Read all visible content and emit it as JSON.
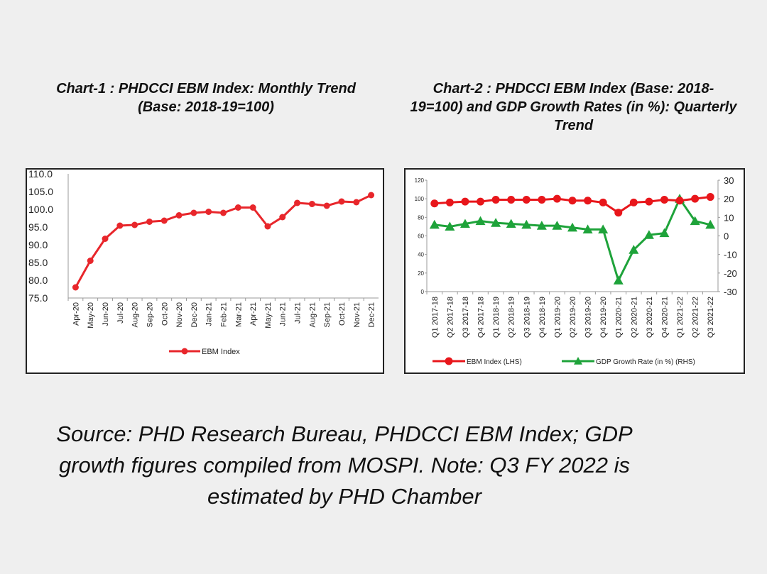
{
  "chart1_title": {
    "line1": "Chart-1 : PHDCCI EBM Index: Monthly Trend",
    "line2": "(Base: 2018-19=100)"
  },
  "chart2_title": {
    "line1": "Chart-2 : PHDCCI EBM Index (Base: 2018-",
    "line2": "19=100) and GDP Growth Rates (in %): Quarterly",
    "line3": "Trend"
  },
  "source_note": {
    "line1": "Source: PHD Research Bureau, PHDCCI EBM Index; GDP",
    "line2": "growth figures compiled from MOSPI. Note: Q3 FY 2022 is",
    "line3": "estimated by PHD Chamber"
  },
  "chart_data": [
    {
      "type": "line",
      "title": "Chart-1 : PHDCCI EBM Index: Monthly Trend (Base: 2018-19=100)",
      "categories": [
        "Apr-20",
        "May-20",
        "Jun-20",
        "Jul-20",
        "Aug-20",
        "Sep-20",
        "Oct-20",
        "Nov-20",
        "Dec-20",
        "Jan-21",
        "Feb-21",
        "Mar-21",
        "Apr-21",
        "May-21",
        "Jun-21",
        "Jul-21",
        "Aug-21",
        "Sep-21",
        "Oct-21",
        "Nov-21",
        "Dec-21"
      ],
      "series": [
        {
          "name": "EBM Index",
          "color": "#e8262b",
          "values": [
            78.0,
            85.5,
            91.7,
            95.4,
            95.6,
            96.5,
            96.8,
            98.3,
            99.0,
            99.3,
            99.0,
            100.5,
            100.5,
            95.2,
            97.8,
            101.8,
            101.5,
            101.0,
            102.2,
            102.0,
            104.0
          ]
        }
      ],
      "ylim": [
        75.0,
        110.0
      ],
      "yticks": [
        "75.0",
        "80.0",
        "85.0",
        "90.0",
        "95.0",
        "100.0",
        "105.0",
        "110.0"
      ],
      "legend": "bottom"
    },
    {
      "type": "line",
      "title": "Chart-2 : PHDCCI EBM Index (Base: 2018-19=100) and GDP Growth Rates (in %): Quarterly Trend",
      "categories": [
        "Q1 2017-18",
        "Q2 2017-18",
        "Q3 2017-18",
        "Q4 2017-18",
        "Q1 2018-19",
        "Q2 2018-19",
        "Q3 2018-19",
        "Q4 2018-19",
        "Q1 2019-20",
        "Q2 2019-20",
        "Q3 2019-20",
        "Q4 2019-20",
        "Q1 2020-21",
        "Q2 2020-21",
        "Q3 2020-21",
        "Q4 2020-21",
        "Q1 2021-22",
        "Q2 2021-22",
        "Q3 2021-22"
      ],
      "series": [
        {
          "name": "EBM Index (LHS)",
          "axis": "left",
          "color": "#e8161b",
          "values": [
            95,
            96,
            97,
            97,
            99,
            99,
            99,
            99,
            100,
            98,
            98,
            96,
            85,
            96,
            97,
            99,
            98,
            100,
            102
          ]
        },
        {
          "name": "GDP Growth Rate (in %) (RHS)",
          "axis": "right",
          "color": "#1ea33a",
          "values": [
            6,
            5,
            6.5,
            8,
            7,
            6.5,
            6,
            5.5,
            5.5,
            4.5,
            3.5,
            3.5,
            -24,
            -7.5,
            0.5,
            1.5,
            20,
            8,
            6
          ]
        }
      ],
      "ylim_left": [
        0,
        120
      ],
      "yticks_left": [
        "0",
        "20",
        "40",
        "60",
        "80",
        "100",
        "120"
      ],
      "ylim_right": [
        -30,
        30
      ],
      "yticks_right": [
        "-30",
        "-20",
        "-10",
        "0",
        "10",
        "20",
        "30"
      ],
      "legend": "bottom"
    }
  ]
}
